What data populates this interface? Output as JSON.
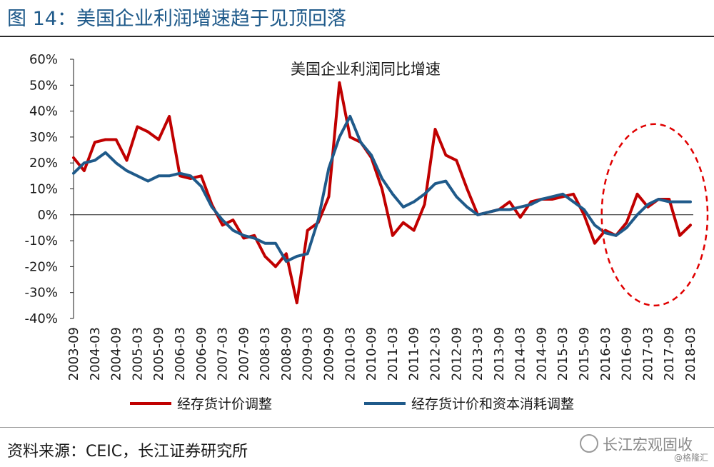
{
  "figure": {
    "title": "图 14：美国企业利润增速趋于见顶回落",
    "source": "资料来源：CEIC，长江证券研究所",
    "watermark": "长江宏观固收",
    "watermark_sub": "@格隆汇"
  },
  "chart_data": {
    "type": "line",
    "title": "美国企业利润同比增速",
    "xlabel": "",
    "ylabel": "",
    "ylim": [
      -40,
      60
    ],
    "yticks": [
      60,
      50,
      40,
      30,
      20,
      10,
      0,
      -10,
      -20,
      -30,
      -40
    ],
    "ytick_format": "percent",
    "x": [
      "2003-09",
      "2003-12",
      "2004-03",
      "2004-06",
      "2004-09",
      "2004-12",
      "2005-03",
      "2005-06",
      "2005-09",
      "2005-12",
      "2006-03",
      "2006-06",
      "2006-09",
      "2006-12",
      "2007-03",
      "2007-06",
      "2007-09",
      "2007-12",
      "2008-03",
      "2008-06",
      "2008-09",
      "2008-12",
      "2009-03",
      "2009-06",
      "2009-09",
      "2009-12",
      "2010-03",
      "2010-06",
      "2010-09",
      "2010-12",
      "2011-03",
      "2011-06",
      "2011-09",
      "2011-12",
      "2012-03",
      "2012-06",
      "2012-09",
      "2012-12",
      "2013-03",
      "2013-06",
      "2013-09",
      "2013-12",
      "2014-03",
      "2014-06",
      "2014-09",
      "2014-12",
      "2015-03",
      "2015-06",
      "2015-09",
      "2015-12",
      "2016-03",
      "2016-06",
      "2016-09",
      "2016-12",
      "2017-03",
      "2017-06",
      "2017-09",
      "2017-12",
      "2018-03"
    ],
    "xtick_labels": [
      "2003-09",
      "2004-03",
      "2004-09",
      "2005-03",
      "2005-09",
      "2006-03",
      "2006-09",
      "2007-03",
      "2007-09",
      "2008-03",
      "2008-09",
      "2009-03",
      "2009-09",
      "2010-03",
      "2010-09",
      "2011-03",
      "2011-09",
      "2012-03",
      "2012-09",
      "2013-03",
      "2013-09",
      "2014-03",
      "2014-09",
      "2015-03",
      "2015-09",
      "2016-03",
      "2016-09",
      "2017-03",
      "2017-09",
      "2018-03"
    ],
    "series": [
      {
        "name": "经存货计价调整",
        "color": "#c00000",
        "values": [
          22,
          17,
          28,
          29,
          29,
          21,
          34,
          32,
          29,
          38,
          15,
          14,
          15,
          4,
          -4,
          -2,
          -9,
          -8,
          -16,
          -20,
          -15,
          -34,
          -6,
          -3,
          7,
          51,
          30,
          28,
          22,
          10,
          -8,
          -3,
          -6,
          4,
          33,
          23,
          21,
          10,
          0,
          1,
          2,
          5,
          -1,
          5,
          6,
          6,
          7,
          8,
          0,
          -11,
          -6,
          -8,
          -3,
          8,
          3,
          6,
          6,
          -8,
          -4
        ]
      },
      {
        "name": "经存货计价和资本消耗调整",
        "color": "#1f5a8a",
        "values": [
          16,
          20,
          21,
          24,
          20,
          17,
          15,
          13,
          15,
          15,
          16,
          15,
          11,
          3,
          -2,
          -6,
          -8,
          -9,
          -11,
          -11,
          -18,
          -16,
          -15,
          -2,
          18,
          30,
          38,
          28,
          23,
          14,
          8,
          3,
          5,
          8,
          12,
          13,
          7,
          3,
          0,
          1,
          2,
          2,
          3,
          4,
          6,
          7,
          8,
          5,
          2,
          -4,
          -7,
          -8,
          -5,
          0,
          4,
          6,
          5,
          5,
          5
        ]
      }
    ],
    "annotation": "dashed-ellipse-highlight-2016-2018",
    "grid": false,
    "legend_placement": "bottom"
  }
}
